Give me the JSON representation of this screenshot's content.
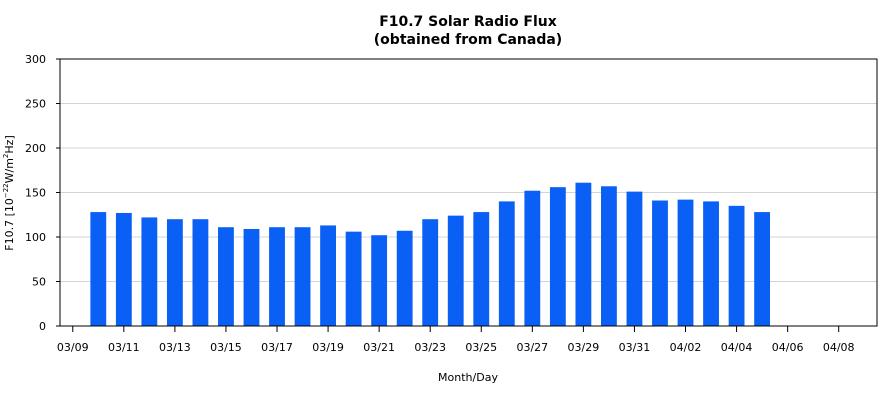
{
  "chart_data": {
    "type": "bar",
    "title": "F10.7 Solar Radio Flux",
    "subtitle": "(obtained from Canada)",
    "xlabel": "Month/Day",
    "ylabel": {
      "prefix": "F10.7 [10",
      "exp1": "−22",
      "mid": "W/m",
      "exp2": "2",
      "suffix": "Hz]"
    },
    "ylim": [
      0,
      300
    ],
    "yticks": [
      0,
      50,
      100,
      150,
      200,
      250,
      300
    ],
    "grid": true,
    "legend": "none",
    "bar_color": "#0a5ff5",
    "categories": [
      "03/09",
      "03/10",
      "03/11",
      "03/12",
      "03/13",
      "03/14",
      "03/15",
      "03/16",
      "03/17",
      "03/18",
      "03/19",
      "03/20",
      "03/21",
      "03/22",
      "03/23",
      "03/24",
      "03/25",
      "03/26",
      "03/27",
      "03/28",
      "03/29",
      "03/30",
      "03/31",
      "04/01",
      "04/02",
      "04/03",
      "04/04",
      "04/05",
      "04/06",
      "04/07",
      "04/08",
      "04/09"
    ],
    "values": [
      null,
      128,
      127,
      122,
      120,
      120,
      111,
      109,
      111,
      111,
      113,
      106,
      102,
      107,
      120,
      124,
      128,
      140,
      152,
      156,
      161,
      157,
      151,
      141,
      142,
      140,
      135,
      128,
      null,
      null,
      null,
      null
    ],
    "xtick_labels": [
      "03/09",
      "03/11",
      "03/13",
      "03/15",
      "03/17",
      "03/19",
      "03/21",
      "03/23",
      "03/25",
      "03/27",
      "03/29",
      "03/31",
      "04/02",
      "04/04",
      "04/06",
      "04/08"
    ]
  }
}
